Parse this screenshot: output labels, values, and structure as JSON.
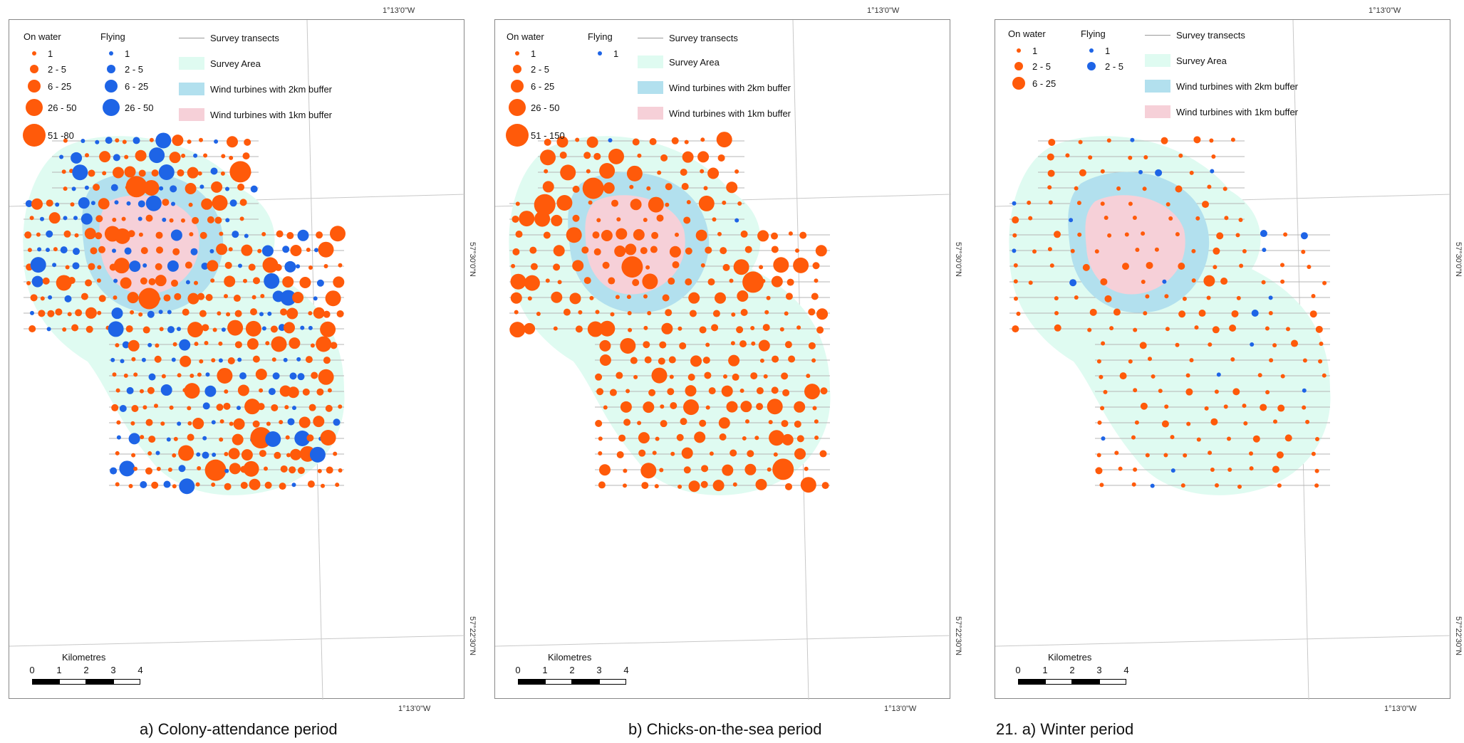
{
  "legend": {
    "on_water": "On water",
    "flying": "Flying",
    "survey_transects": "Survey transects",
    "survey_area": "Survey Area",
    "buffer_2km": "Wind turbines with 2km buffer",
    "buffer_1km": "Wind turbines with 1km buffer"
  },
  "colors": {
    "on_water": "#ff5a0a",
    "flying": "#1e64e6",
    "survey_area": "#dffbf1",
    "buffer_2km": "#b2e0ee",
    "buffer_1km": "#f6d0d8",
    "transect": "#b5b5b5"
  },
  "coords": {
    "lon_top": "1°13'0\"W",
    "lon_bottom": "1°13'0\"W",
    "lat_north": "57°30'0\"N",
    "lat_south": "57°22'30\"N"
  },
  "scale": {
    "title": "Kilometres",
    "ticks": [
      "0",
      "1",
      "2",
      "3",
      "4"
    ]
  },
  "panels": [
    {
      "caption": "a) Colony-attendance period",
      "on_water_classes": [
        "1",
        "2 - 5",
        "6 - 25",
        "26 - 50",
        "51 -80"
      ],
      "flying_classes": [
        "1",
        "2 - 5",
        "6 - 25",
        "26 - 50"
      ]
    },
    {
      "caption": "b) Chicks-on-the-sea period",
      "on_water_classes": [
        "1",
        "2 - 5",
        "6 - 25",
        "26 - 50",
        "51 - 150"
      ],
      "flying_classes": [
        "1"
      ]
    },
    {
      "caption": "21.  a) Winter period",
      "on_water_classes": [
        "1",
        "2 - 5",
        "6 - 25"
      ],
      "flying_classes": [
        "1",
        "2 - 5"
      ]
    }
  ]
}
